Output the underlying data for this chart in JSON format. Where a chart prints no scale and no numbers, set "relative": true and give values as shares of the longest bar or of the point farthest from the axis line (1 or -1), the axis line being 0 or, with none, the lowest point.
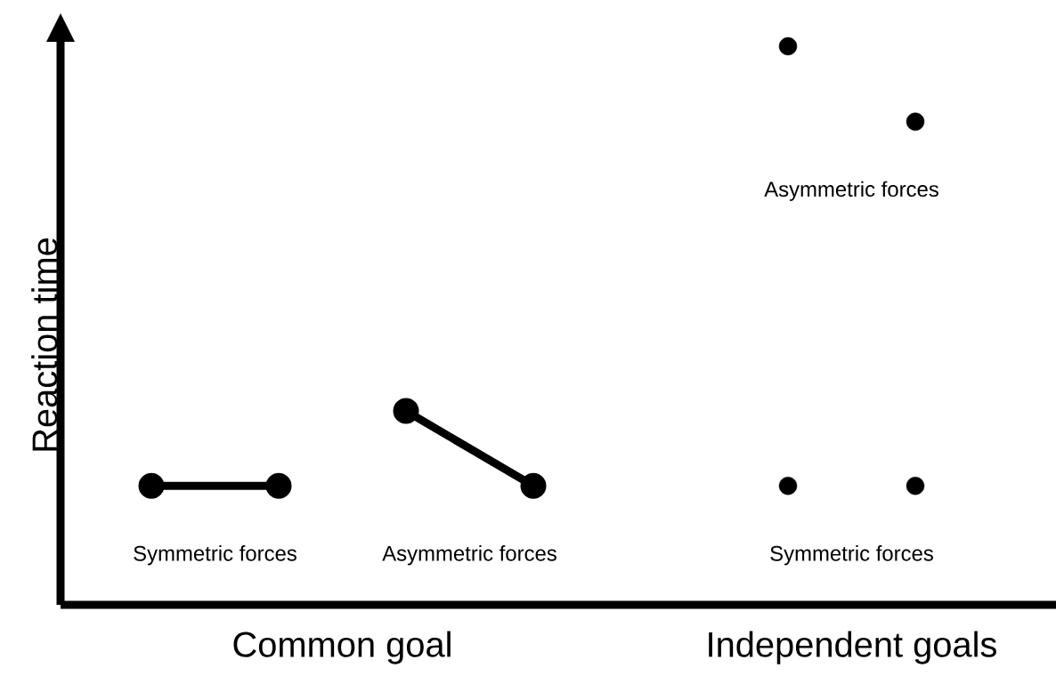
{
  "chart_data": {
    "type": "line",
    "relative": true,
    "ylabel": "Reaction time",
    "marker": "circle",
    "line_style": "solid",
    "categories": [
      null,
      null,
      null,
      "Common goal",
      null,
      null,
      null,
      null,
      null,
      null,
      null,
      "Independent goals",
      null
    ],
    "series": [
      {
        "name": "Symmetric forces",
        "color": "#000000",
        "values": [
          0.213,
          null,
          0.213,
          null,
          null,
          null,
          null,
          null,
          null,
          null,
          null,
          null,
          null
        ]
      },
      {
        "name": "Asymmetric forces",
        "color": "#000000",
        "values": [
          null,
          null,
          null,
          null,
          0.347,
          null,
          0.213,
          null,
          null,
          null,
          null,
          null,
          null
        ]
      },
      {
        "name": "Asymmetric forces",
        "type": "scatter",
        "color": "#000000",
        "values": [
          null,
          null,
          null,
          null,
          null,
          null,
          null,
          null,
          null,
          null,
          1,
          null,
          0.865
        ]
      },
      {
        "name": "Symmetric forces",
        "type": "scatter",
        "color": "#000000",
        "values": [
          null,
          null,
          null,
          null,
          null,
          null,
          null,
          null,
          null,
          null,
          0.213,
          null,
          0.213
        ]
      }
    ]
  }
}
